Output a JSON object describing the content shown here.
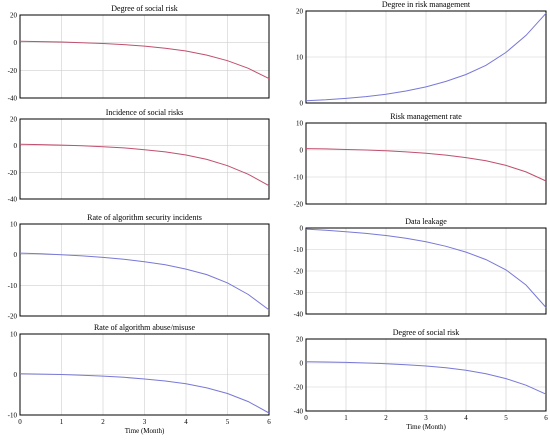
{
  "colors": {
    "red_series": "#c0506e",
    "blue_series": "#7878d8"
  },
  "chart_data": [
    {
      "type": "line",
      "title": "Degree of social risk",
      "x": [
        0,
        0.5,
        1,
        1.5,
        2,
        2.5,
        3,
        3.5,
        4,
        4.5,
        5,
        5.5,
        6
      ],
      "series": [
        {
          "color": "#c0506e",
          "values": [
            1,
            0.8,
            0.5,
            0,
            -0.6,
            -1.4,
            -2.5,
            -4,
            -6,
            -9,
            -13,
            -18.5,
            -26
          ]
        }
      ],
      "ylim": [
        -40,
        20
      ],
      "yticks": [
        -40,
        -20,
        0,
        20
      ],
      "xlim": [
        0,
        6
      ],
      "xticks": [
        0,
        1,
        2,
        3,
        4,
        5,
        6
      ],
      "show_xticks": false,
      "xlabel": "",
      "grid": true
    },
    {
      "type": "line",
      "title": "Incidence of social risks",
      "x": [
        0,
        0.5,
        1,
        1.5,
        2,
        2.5,
        3,
        3.5,
        4,
        4.5,
        5,
        5.5,
        6
      ],
      "series": [
        {
          "color": "#c0506e",
          "values": [
            1,
            0.8,
            0.4,
            -0.1,
            -0.8,
            -1.7,
            -3,
            -4.7,
            -7,
            -10.3,
            -15,
            -21.5,
            -30
          ]
        }
      ],
      "ylim": [
        -40,
        20
      ],
      "yticks": [
        -40,
        -20,
        0,
        20
      ],
      "xlim": [
        0,
        6
      ],
      "xticks": [
        0,
        1,
        2,
        3,
        4,
        5,
        6
      ],
      "show_xticks": false,
      "xlabel": "",
      "grid": true
    },
    {
      "type": "line",
      "title": "Rate of algorithm security incidents",
      "x": [
        0,
        0.5,
        1,
        1.5,
        2,
        2.5,
        3,
        3.5,
        4,
        4.5,
        5,
        5.5,
        6
      ],
      "series": [
        {
          "color": "#7878d8",
          "values": [
            0.5,
            0.3,
            0,
            -0.4,
            -0.9,
            -1.5,
            -2.3,
            -3.3,
            -4.7,
            -6.5,
            -9.2,
            -13,
            -18
          ]
        }
      ],
      "ylim": [
        -20,
        10
      ],
      "yticks": [
        -20,
        -10,
        0,
        10
      ],
      "xlim": [
        0,
        6
      ],
      "xticks": [
        0,
        1,
        2,
        3,
        4,
        5,
        6
      ],
      "show_xticks": false,
      "xlabel": "",
      "grid": true
    },
    {
      "type": "line",
      "title": "Rate of algorithm abuse/misuse",
      "x": [
        0,
        0.5,
        1,
        1.5,
        2,
        2.5,
        3,
        3.5,
        4,
        4.5,
        5,
        5.5,
        6
      ],
      "series": [
        {
          "color": "#7878d8",
          "values": [
            0.2,
            0.1,
            0,
            -0.2,
            -0.4,
            -0.7,
            -1.1,
            -1.6,
            -2.3,
            -3.3,
            -4.7,
            -6.7,
            -9.5
          ]
        }
      ],
      "ylim": [
        -10,
        10
      ],
      "yticks": [
        -10,
        0,
        10
      ],
      "xlim": [
        0,
        6
      ],
      "xticks": [
        0,
        1,
        2,
        3,
        4,
        5,
        6
      ],
      "show_xticks": true,
      "xlabel": "Time (Month)",
      "grid": true
    },
    {
      "type": "line",
      "title": "Degree in risk management",
      "x": [
        0,
        0.5,
        1,
        1.5,
        2,
        2.5,
        3,
        3.5,
        4,
        4.5,
        5,
        5.5,
        6
      ],
      "series": [
        {
          "color": "#7878d8",
          "values": [
            0.5,
            0.7,
            1,
            1.4,
            1.9,
            2.6,
            3.5,
            4.7,
            6.2,
            8.2,
            11,
            14.7,
            19.5
          ]
        }
      ],
      "ylim": [
        0,
        20
      ],
      "yticks": [
        0,
        10,
        20
      ],
      "xlim": [
        0,
        6
      ],
      "xticks": [
        0,
        1,
        2,
        3,
        4,
        5,
        6
      ],
      "show_xticks": false,
      "xlabel": "",
      "grid": true
    },
    {
      "type": "line",
      "title": "Risk management rate",
      "x": [
        0,
        0.5,
        1,
        1.5,
        2,
        2.5,
        3,
        3.5,
        4,
        4.5,
        5,
        5.5,
        6
      ],
      "series": [
        {
          "color": "#c0506e",
          "values": [
            0.5,
            0.4,
            0.2,
            0,
            -0.3,
            -0.7,
            -1.2,
            -1.9,
            -2.8,
            -4,
            -5.7,
            -8.1,
            -11.5
          ]
        }
      ],
      "ylim": [
        -20,
        10
      ],
      "yticks": [
        -20,
        -10,
        0,
        10
      ],
      "xlim": [
        0,
        6
      ],
      "xticks": [
        0,
        1,
        2,
        3,
        4,
        5,
        6
      ],
      "show_xticks": false,
      "xlabel": "",
      "grid": true
    },
    {
      "type": "line",
      "title": "Data leakage",
      "x": [
        0,
        0.5,
        1,
        1.5,
        2,
        2.5,
        3,
        3.5,
        4,
        4.5,
        5,
        5.5,
        6
      ],
      "series": [
        {
          "color": "#7878d8",
          "values": [
            -0.5,
            -1,
            -1.7,
            -2.5,
            -3.5,
            -4.8,
            -6.4,
            -8.5,
            -11.2,
            -14.7,
            -19.5,
            -26.5,
            -37
          ]
        }
      ],
      "ylim": [
        -40,
        0
      ],
      "yticks": [
        -40,
        -30,
        -20,
        -10,
        0
      ],
      "xlim": [
        0,
        6
      ],
      "xticks": [
        0,
        1,
        2,
        3,
        4,
        5,
        6
      ],
      "show_xticks": false,
      "xlabel": "",
      "grid": true
    },
    {
      "type": "line",
      "title": "Degree of social risk",
      "x": [
        0,
        0.5,
        1,
        1.5,
        2,
        2.5,
        3,
        3.5,
        4,
        4.5,
        5,
        5.5,
        6
      ],
      "series": [
        {
          "color": "#7878d8",
          "values": [
            1,
            0.8,
            0.5,
            0,
            -0.6,
            -1.4,
            -2.5,
            -4,
            -6,
            -9,
            -13,
            -18.5,
            -26
          ]
        }
      ],
      "ylim": [
        -40,
        20
      ],
      "yticks": [
        -40,
        -20,
        0,
        20
      ],
      "xlim": [
        0,
        6
      ],
      "xticks": [
        0,
        1,
        2,
        3,
        4,
        5,
        6
      ],
      "show_xticks": true,
      "xlabel": "Time (Month)",
      "grid": true
    }
  ]
}
